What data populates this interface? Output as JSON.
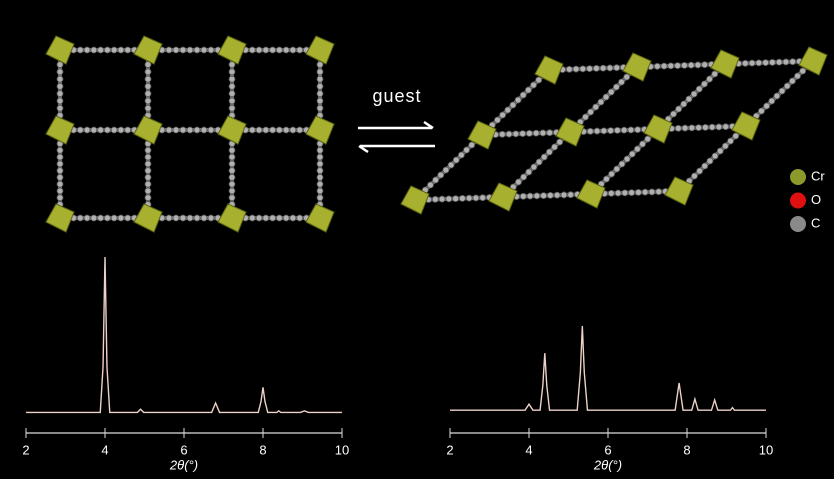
{
  "chart_data": [
    {
      "type": "line",
      "xlabel": "2θ(°)",
      "xlim": [
        2,
        10
      ],
      "xticks": [
        2,
        4,
        6,
        8,
        10
      ],
      "color": "#ecd2c8",
      "x": [
        2,
        3.88,
        3.95,
        4.0,
        4.05,
        4.12,
        4.82,
        4.9,
        4.98,
        6.7,
        6.8,
        6.9,
        7.88,
        7.95,
        8.0,
        8.05,
        8.12,
        8.35,
        8.4,
        8.45,
        8.95,
        9.05,
        9.15,
        10
      ],
      "values": [
        1,
        1,
        30,
        100,
        30,
        1,
        1,
        3,
        1,
        1,
        7,
        1,
        1,
        8,
        17,
        8,
        1,
        1,
        2,
        1,
        1,
        2,
        1,
        1
      ]
    },
    {
      "type": "line",
      "xlabel": "2θ(°)",
      "xlim": [
        2,
        10
      ],
      "xticks": [
        2,
        4,
        6,
        8,
        10
      ],
      "color": "#ecd2c8",
      "x": [
        2,
        3.9,
        4.0,
        4.1,
        4.28,
        4.35,
        4.4,
        4.45,
        4.52,
        5.22,
        5.3,
        5.35,
        5.4,
        5.48,
        7.7,
        7.8,
        7.9,
        8.12,
        8.2,
        8.28,
        8.62,
        8.7,
        8.78,
        9.1,
        9.15,
        9.2,
        10
      ],
      "values": [
        1,
        1,
        8,
        1,
        1,
        30,
        68,
        30,
        1,
        1,
        45,
        100,
        45,
        1,
        1,
        33,
        1,
        1,
        14,
        1,
        1,
        13,
        1,
        1,
        4,
        1,
        1
      ]
    }
  ],
  "figure": {
    "arrow_label": "guest",
    "legend": [
      {
        "name": "Cr",
        "color": "#8c9a2c"
      },
      {
        "name": "O",
        "color": "#e01010"
      },
      {
        "name": "C",
        "color": "#8a8a8a"
      }
    ]
  }
}
